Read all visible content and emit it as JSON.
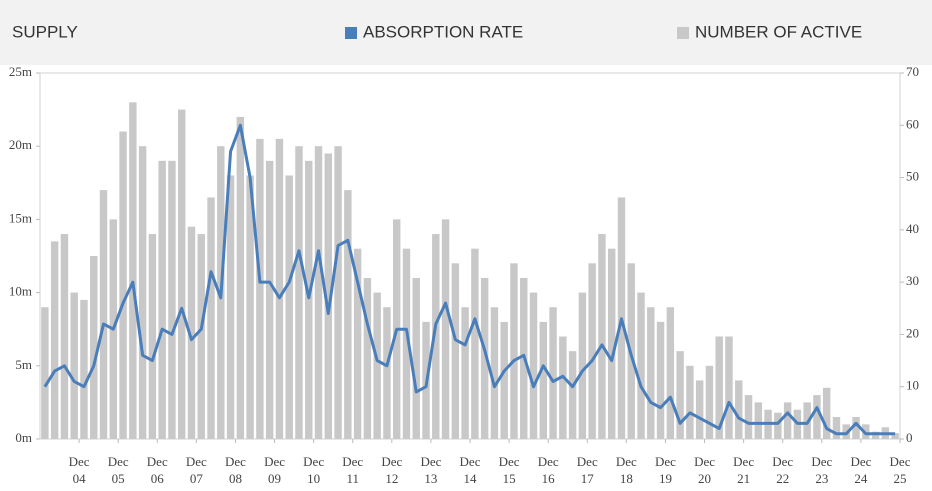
{
  "chart_data": {
    "type": "bar",
    "title": "SUPPLY",
    "categories": [
      null,
      null,
      null,
      "Dec 04",
      null,
      null,
      null,
      "Dec 05",
      null,
      null,
      null,
      "Dec 06",
      null,
      null,
      null,
      "Dec 07",
      null,
      null,
      null,
      "Dec 08",
      null,
      null,
      null,
      "Dec 09",
      null,
      null,
      null,
      "Dec 10",
      null,
      null,
      null,
      "Dec 11",
      null,
      null,
      null,
      "Dec 12",
      null,
      null,
      null,
      "Dec 13",
      null,
      null,
      null,
      "Dec 14",
      null,
      null,
      null,
      "Dec 15",
      null,
      null,
      null,
      "Dec 16",
      null,
      null,
      null,
      "Dec 17",
      null,
      null,
      null,
      "Dec 18",
      null,
      null,
      null,
      "Dec 19",
      null,
      null,
      null,
      "Dec 20",
      null,
      null,
      null,
      "Dec 21",
      null,
      null,
      null,
      "Dec 22",
      null,
      null,
      null,
      "Dec 23",
      null,
      null,
      null,
      "Dec 24",
      null,
      null,
      null,
      "Dec 25"
    ],
    "series": [
      {
        "name": "ABSORPTION RATE",
        "type": "line",
        "axis": "y2",
        "color": "#4a7ebb",
        "values": [
          10,
          13,
          14,
          11,
          10,
          14,
          22,
          21,
          26,
          30,
          16,
          15,
          21,
          20,
          25,
          19,
          21,
          32,
          27,
          55,
          60,
          50,
          30,
          30,
          27,
          30,
          36,
          27,
          36,
          24,
          37,
          38,
          30,
          22,
          15,
          14,
          21,
          21,
          9,
          10,
          22,
          26,
          19,
          18,
          23,
          17,
          10,
          13,
          15,
          16,
          10,
          14,
          11,
          12,
          10,
          13,
          15,
          18,
          15,
          23,
          16,
          10,
          7,
          6,
          8,
          3,
          5,
          4,
          3,
          2,
          7,
          4,
          3,
          3,
          3,
          3,
          5,
          3,
          3,
          6,
          2,
          1,
          1,
          3,
          1,
          1,
          1,
          1
        ]
      },
      {
        "name": "NUMBER OF ACTIVE",
        "type": "bar",
        "axis": "y",
        "color": "#c8c8c8",
        "values": [
          9000000,
          13500000,
          14000000,
          10000000,
          9500000,
          12500000,
          17000000,
          15000000,
          21000000,
          23000000,
          20000000,
          14000000,
          19000000,
          19000000,
          22500000,
          14500000,
          14000000,
          16500000,
          20000000,
          18000000,
          22000000,
          18000000,
          20500000,
          19000000,
          20500000,
          18000000,
          20000000,
          19000000,
          20000000,
          19500000,
          20000000,
          17000000,
          13000000,
          11000000,
          10000000,
          9000000,
          15000000,
          13000000,
          11000000,
          8000000,
          14000000,
          15000000,
          12000000,
          9000000,
          13000000,
          11000000,
          9000000,
          8000000,
          12000000,
          11000000,
          10000000,
          8000000,
          9000000,
          7000000,
          6000000,
          10000000,
          12000000,
          14000000,
          13000000,
          16500000,
          12000000,
          10000000,
          9000000,
          8000000,
          9000000,
          6000000,
          5000000,
          4000000,
          5000000,
          7000000,
          7000000,
          4000000,
          3000000,
          2500000,
          2000000,
          1800000,
          2500000,
          2000000,
          2500000,
          3000000,
          3500000,
          1500000,
          1000000,
          1500000,
          1000000,
          500000,
          800000,
          400000
        ]
      }
    ],
    "ylim": [
      0,
      25000000
    ],
    "yticks": [
      {
        "value": 0,
        "label": "0m"
      },
      {
        "value": 5000000,
        "label": "5m"
      },
      {
        "value": 10000000,
        "label": "10m"
      },
      {
        "value": 15000000,
        "label": "15m"
      },
      {
        "value": 20000000,
        "label": "20m"
      },
      {
        "value": 25000000,
        "label": "25m"
      }
    ],
    "y2lim": [
      0,
      70
    ],
    "y2ticks": [
      0,
      10,
      20,
      30,
      40,
      50,
      60,
      70
    ]
  }
}
